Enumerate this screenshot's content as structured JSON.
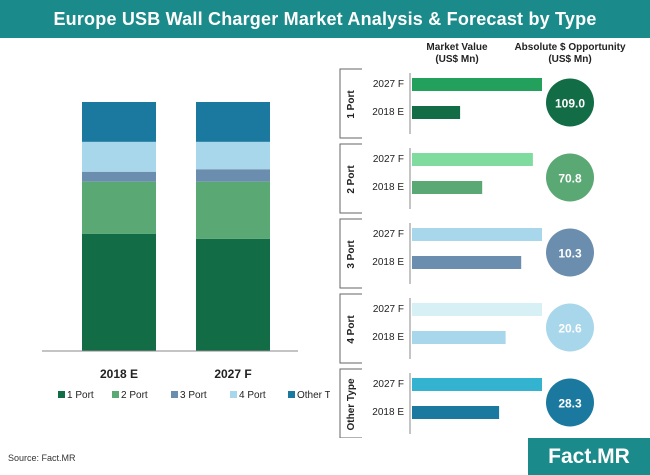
{
  "title": "Europe USB Wall Charger Market Analysis & Forecast by Type",
  "source": "Source: Fact.MR",
  "logo": "Fact.MR",
  "colors": {
    "1 Port": "#126c45",
    "2 Port": "#5aa874",
    "3 Port": "#6b8eae",
    "4 Port": "#a8d6ea",
    "Other Type": "#1b79a0",
    "title_bg": "#1b8a8a"
  },
  "chart_data": [
    {
      "type": "bar",
      "stacked": true,
      "categories": [
        "2018 E",
        "2027 F"
      ],
      "series": [
        {
          "name": "1 Port",
          "values": [
            47,
            45
          ]
        },
        {
          "name": "2 Port",
          "values": [
            21,
            23
          ]
        },
        {
          "name": "3 Port",
          "values": [
            4,
            5
          ]
        },
        {
          "name": "4 Port",
          "values": [
            12,
            11
          ]
        },
        {
          "name": "Other Type",
          "values": [
            16,
            16
          ]
        }
      ],
      "ylim": [
        0,
        100
      ],
      "legend": "bottom"
    },
    {
      "type": "bar",
      "orientation": "horizontal",
      "headers": {
        "market_value": "Market Value (US$ Mn)",
        "opportunity": "Absolute $ Opportunity (US$ Mn)"
      },
      "groups": [
        {
          "name": "1 Port",
          "bars": [
            {
              "label": "2027 F",
              "value": 100,
              "color": "#22a05c"
            },
            {
              "label": "2018 E",
              "value": 37,
              "color": "#126c45"
            }
          ],
          "opportunity": "109.0",
          "circle_color": "#126c45"
        },
        {
          "name": "2 Port",
          "bars": [
            {
              "label": "2027 F",
              "value": 93,
              "color": "#7fdc9e"
            },
            {
              "label": "2018 E",
              "value": 54,
              "color": "#5aa874"
            }
          ],
          "opportunity": "70.8",
          "circle_color": "#5aa874"
        },
        {
          "name": "3 Port",
          "bars": [
            {
              "label": "2027 F",
              "value": 100,
              "color": "#a8d6ea"
            },
            {
              "label": "2018 E",
              "value": 84,
              "color": "#6b8eae"
            }
          ],
          "opportunity": "10.3",
          "circle_color": "#6b8eae"
        },
        {
          "name": "4 Port",
          "bars": [
            {
              "label": "2027 F",
              "value": 100,
              "color": "#d6f0f6"
            },
            {
              "label": "2018 E",
              "value": 72,
              "color": "#a8d6ea"
            }
          ],
          "opportunity": "20.6",
          "circle_color": "#a8d6ea"
        },
        {
          "name": "Other Type",
          "bars": [
            {
              "label": "2027 F",
              "value": 100,
              "color": "#33b3d0"
            },
            {
              "label": "2018 E",
              "value": 67,
              "color": "#1b79a0"
            }
          ],
          "opportunity": "28.3",
          "circle_color": "#1b79a0"
        }
      ]
    }
  ]
}
